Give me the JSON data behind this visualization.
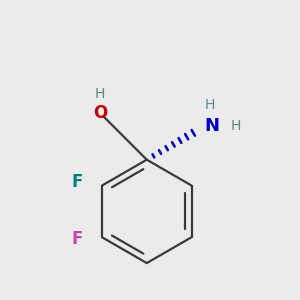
{
  "background_color": "#ebebeb",
  "bond_color": "#3a3a3a",
  "bond_width": 1.6,
  "oh_color": "#cc0000",
  "h_color": "#5a8a8a",
  "nh2_color": "#0000cc",
  "f1_color": "#008080",
  "f2_color": "#cc44aa",
  "stereo_color": "#0000cc",
  "xlim": [
    -1.8,
    2.2
  ],
  "ylim": [
    -2.8,
    1.8
  ]
}
